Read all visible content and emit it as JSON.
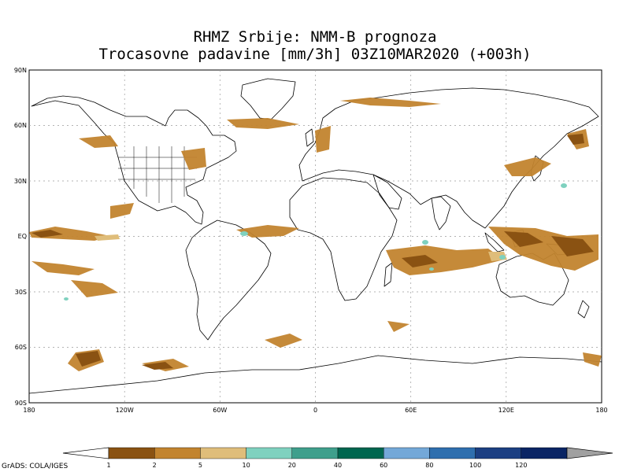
{
  "title": {
    "line1": "RHMZ Srbije: NMM-B prognoza",
    "line2": "Trocasovne padavine [mm/3h] 03Z10MAR2020 (+003h)"
  },
  "axes": {
    "lat_labels": [
      "90N",
      "60N",
      "30N",
      "EQ",
      "30S",
      "60S",
      "90S"
    ],
    "lon_labels": [
      "180",
      "120W",
      "60W",
      "0",
      "60E",
      "120E",
      "180"
    ]
  },
  "colorbar": {
    "levels": [
      "1",
      "2",
      "5",
      "10",
      "20",
      "40",
      "60",
      "80",
      "100",
      "120"
    ],
    "colors": [
      "#8a5212",
      "#c2842f",
      "#dfbd7a",
      "#7fd1bf",
      "#3f9f8c",
      "#00664f",
      "#74a8d8",
      "#2f6fae",
      "#1c3f82",
      "#0a2564"
    ],
    "under_color": "#ffffff",
    "over_color": "#a0a0a0"
  },
  "credit": "GrADS: COLA/IGES",
  "legend_colors": {
    "land_outline": "#000000",
    "grid": "#9a9a9a"
  }
}
